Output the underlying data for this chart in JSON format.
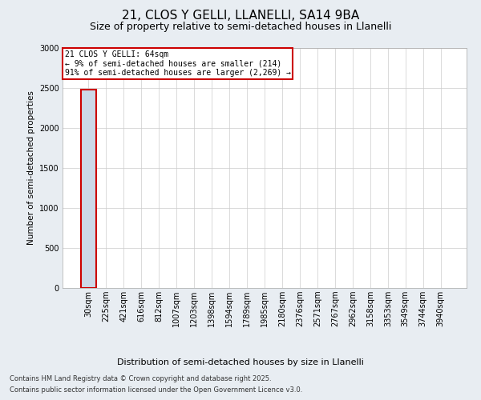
{
  "title_line1": "21, CLOS Y GELLI, LLANELLI, SA14 9BA",
  "title_line2": "Size of property relative to semi-detached houses in Llanelli",
  "xlabel": "Distribution of semi-detached houses by size in Llanelli",
  "ylabel": "Number of semi-detached properties",
  "categories": [
    "30sqm",
    "225sqm",
    "421sqm",
    "616sqm",
    "812sqm",
    "1007sqm",
    "1203sqm",
    "1398sqm",
    "1594sqm",
    "1789sqm",
    "1985sqm",
    "2180sqm",
    "2376sqm",
    "2571sqm",
    "2767sqm",
    "2962sqm",
    "3158sqm",
    "3353sqm",
    "3549sqm",
    "3744sqm",
    "3940sqm"
  ],
  "values": [
    2483,
    0,
    0,
    0,
    0,
    0,
    0,
    0,
    0,
    0,
    0,
    0,
    0,
    0,
    0,
    0,
    0,
    0,
    0,
    0,
    0
  ],
  "bar_color": "#ccd9e8",
  "bar_edge_color": "#aabbcc",
  "highlight_bar_index": 0,
  "highlight_edge_color": "#cc0000",
  "ylim": [
    0,
    3000
  ],
  "yticks": [
    0,
    500,
    1000,
    1500,
    2000,
    2500,
    3000
  ],
  "annotation_text_line1": "21 CLOS Y GELLI: 64sqm",
  "annotation_text_line2": "← 9% of semi-detached houses are smaller (214)",
  "annotation_text_line3": "91% of semi-detached houses are larger (2,269) →",
  "annotation_box_color": "#ffffff",
  "annotation_border_color": "#cc0000",
  "footer_line1": "Contains HM Land Registry data © Crown copyright and database right 2025.",
  "footer_line2": "Contains public sector information licensed under the Open Government Licence v3.0.",
  "background_color": "#e8edf2",
  "plot_background_color": "#ffffff",
  "grid_color": "#cccccc",
  "title1_fontsize": 11,
  "title2_fontsize": 9,
  "ylabel_fontsize": 7.5,
  "xlabel_fontsize": 8,
  "tick_fontsize": 7,
  "annotation_fontsize": 7,
  "footer_fontsize": 6
}
